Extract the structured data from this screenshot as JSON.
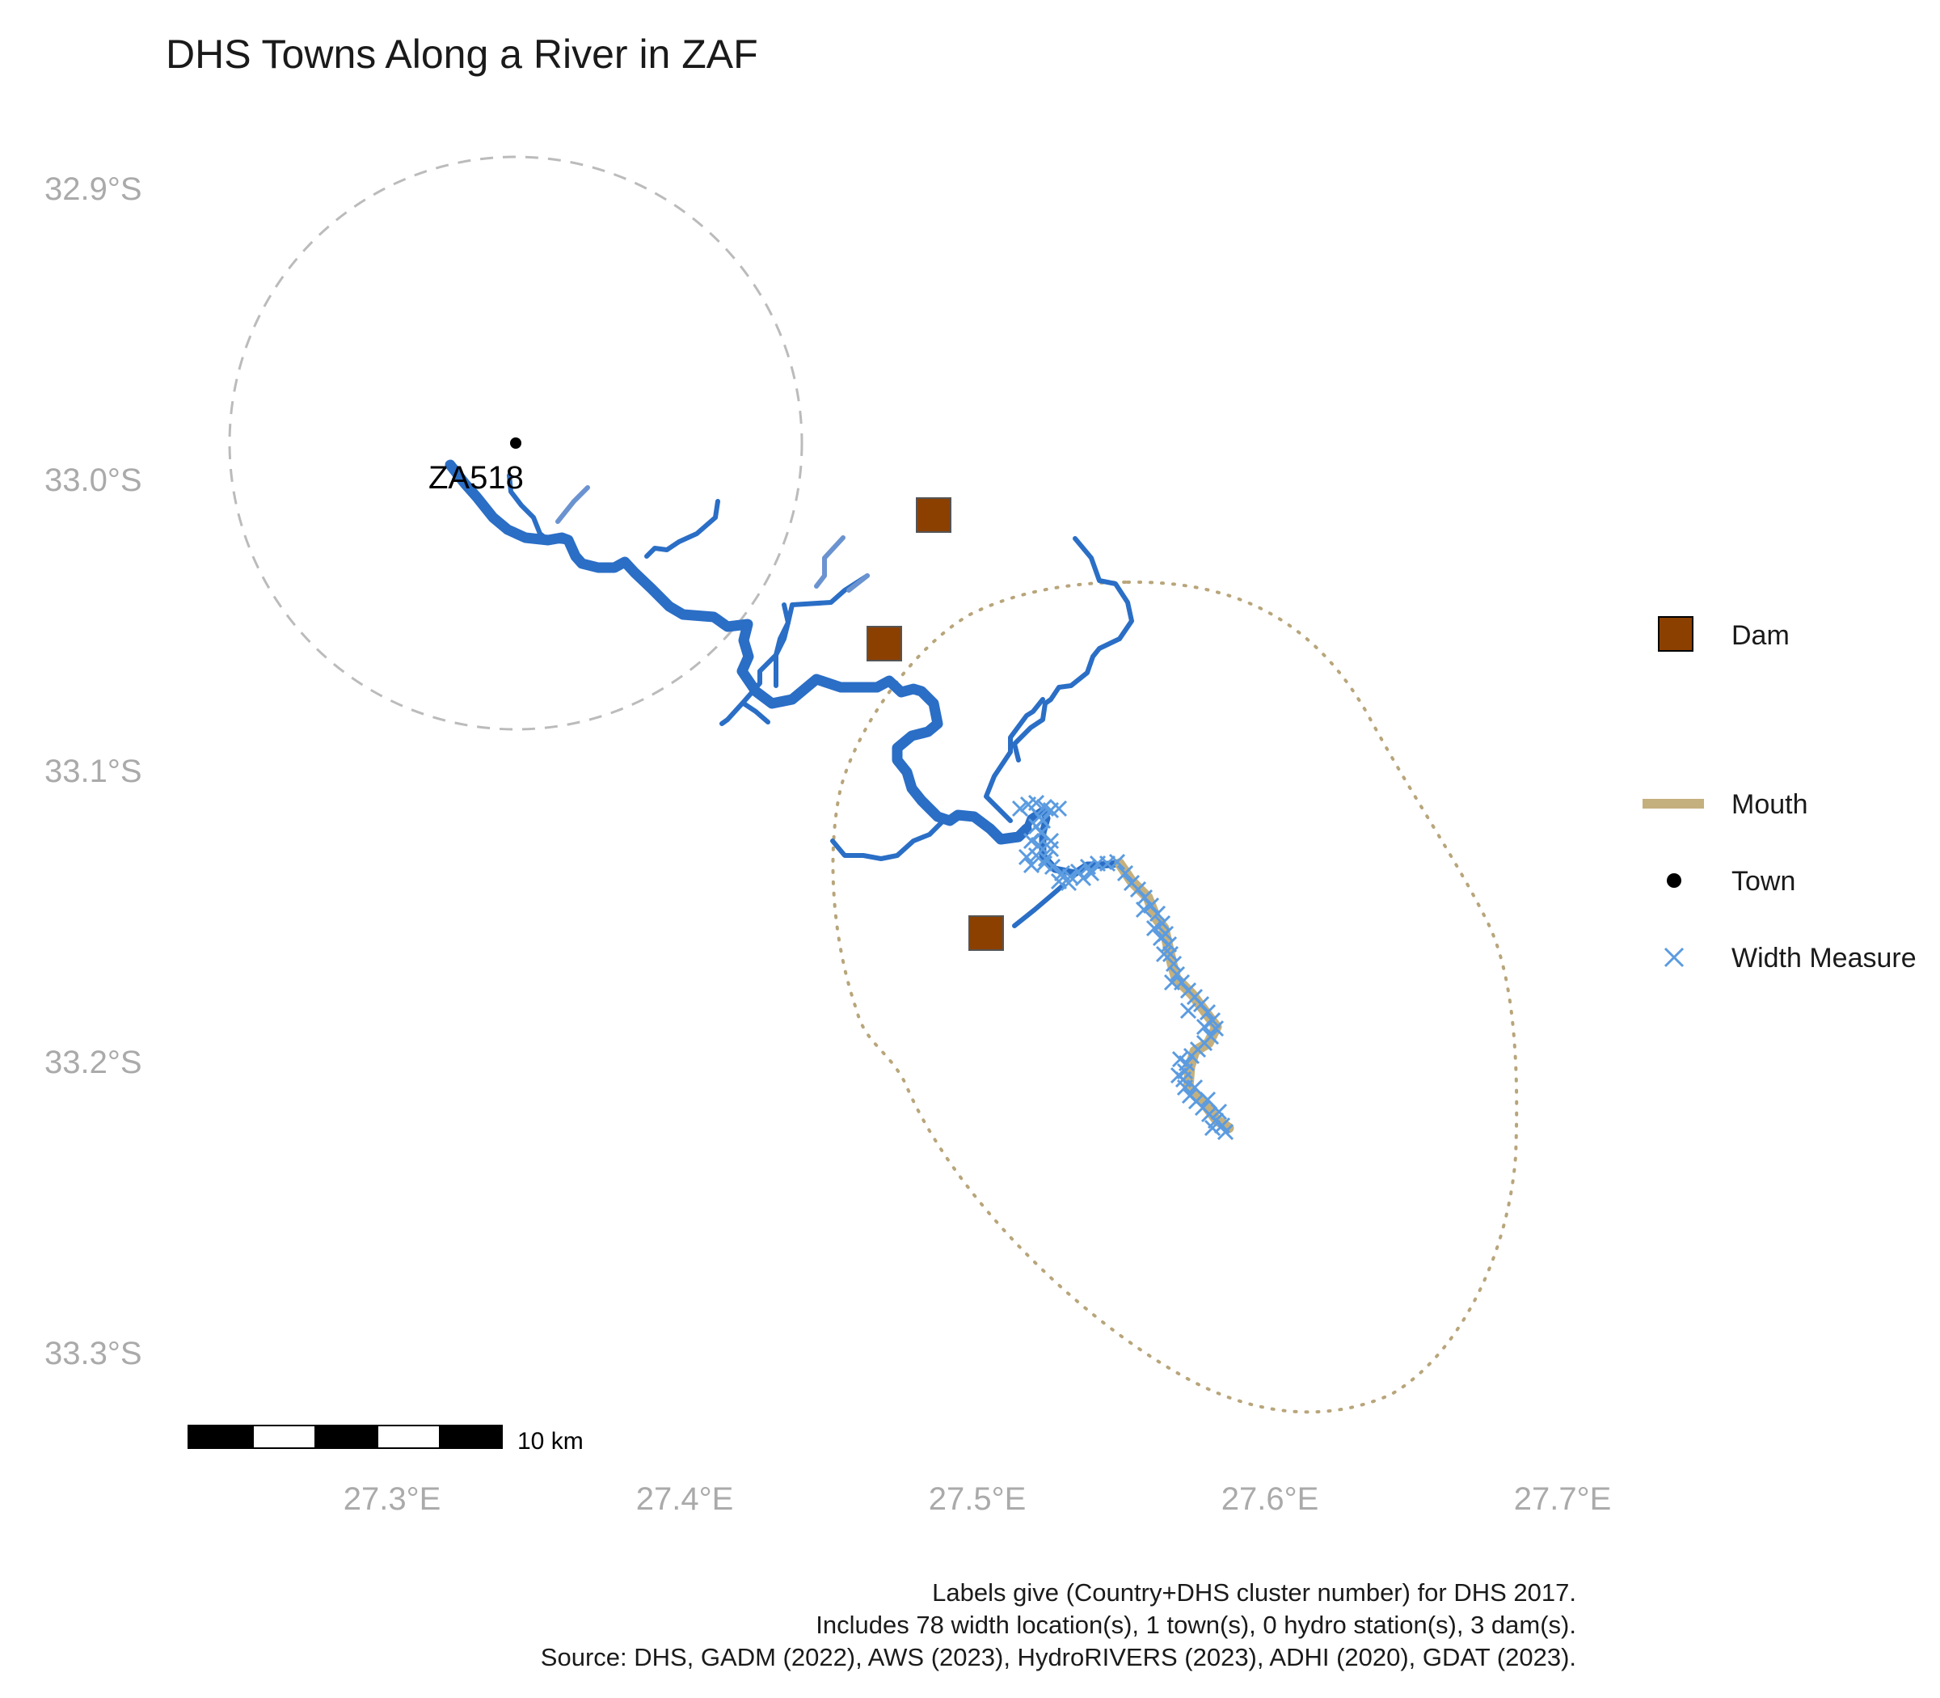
{
  "title": "DHS Towns Along a River in ZAF",
  "axes": {
    "lat_ticks": [
      {
        "value": -32.9,
        "label": "32.9°S"
      },
      {
        "value": -33.0,
        "label": "33.0°S"
      },
      {
        "value": -33.1,
        "label": "33.1°S"
      },
      {
        "value": -33.2,
        "label": "33.2°S"
      },
      {
        "value": -33.3,
        "label": "33.3°S"
      }
    ],
    "lon_ticks": [
      {
        "value": 27.3,
        "label": "27.3°E"
      },
      {
        "value": 27.4,
        "label": "27.4°E"
      },
      {
        "value": 27.5,
        "label": "27.5°E"
      },
      {
        "value": 27.6,
        "label": "27.6°E"
      },
      {
        "value": 27.7,
        "label": "27.7°E"
      }
    ]
  },
  "legend": {
    "dam": "Dam",
    "mouth": "Mouth",
    "town": "Town",
    "width_measure": "Width Measure"
  },
  "colors": {
    "river": "#2a6ec6",
    "river_light": "#6b93d0",
    "mouth": "#c4b07e",
    "dam_fill": "#8b4000",
    "width_measure": "#5b9be0",
    "buffer_town": "#bbbbbb",
    "buffer_mouth": "#b8a57a"
  },
  "town": {
    "id": "ZA518",
    "lon": 27.342,
    "lat": -32.988
  },
  "dams": [
    {
      "lon": 27.484,
      "lat": -33.013
    },
    {
      "lon": 27.467,
      "lat": -33.057
    },
    {
      "lon": 27.501,
      "lat": -33.156
    }
  ],
  "scale_bar": {
    "label": "10 km"
  },
  "caption": [
    "Labels give (Country+DHS cluster number) for DHS 2017.",
    "Includes 78 width location(s), 1 town(s), 0 hydro station(s), 3 dam(s).",
    "Source: DHS, GADM (2022), AWS (2023), HydroRIVERS (2023), ADHI (2020), GDAT (2023)."
  ]
}
